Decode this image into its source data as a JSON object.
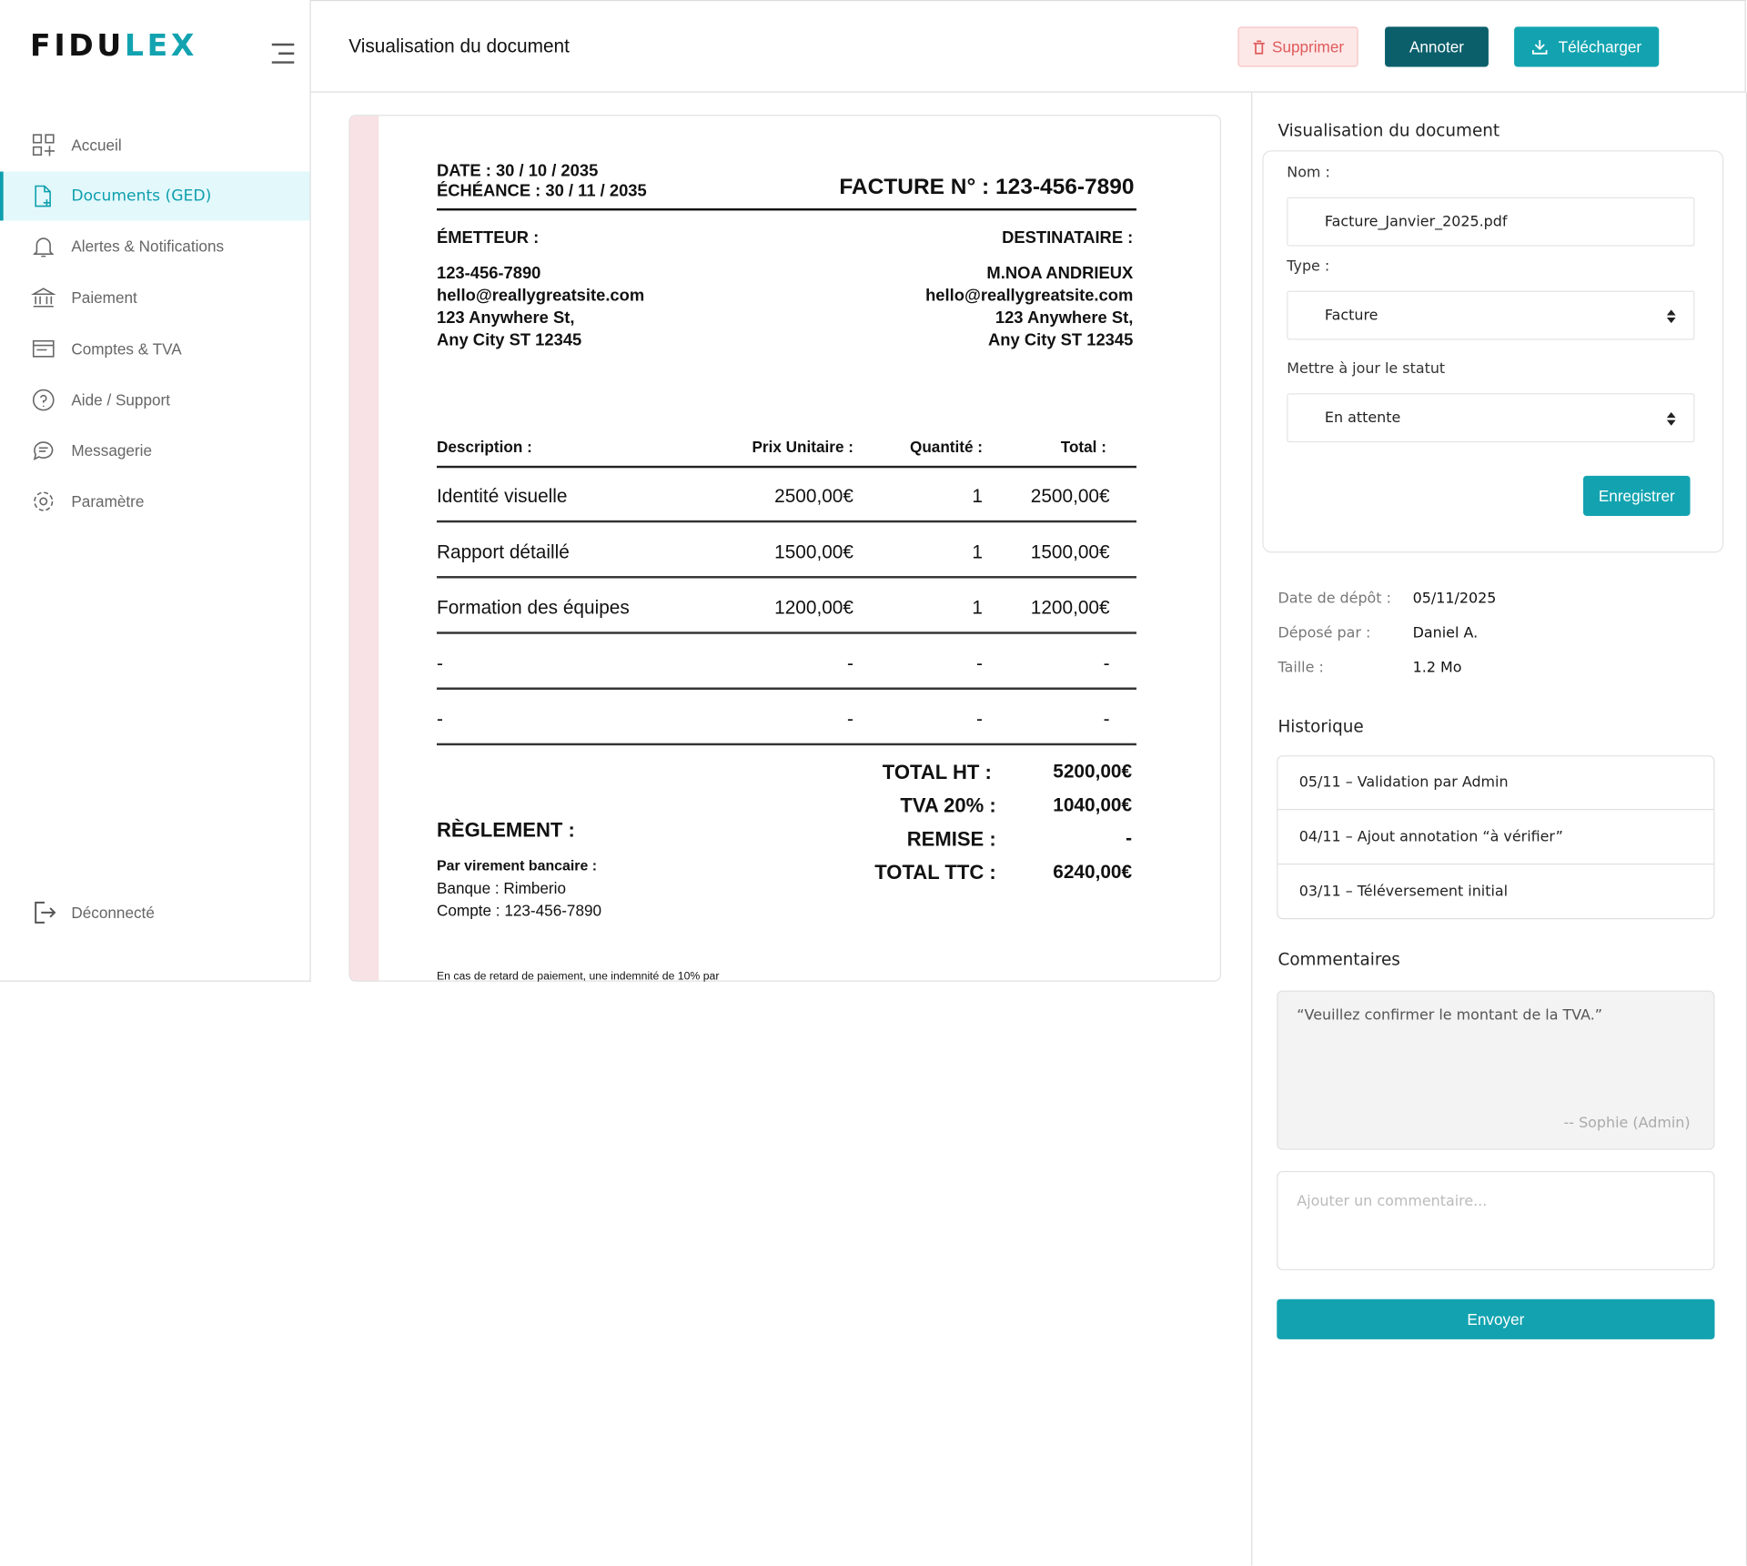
{
  "sidebar": {
    "logo": {
      "dark": "FIDU",
      "accent": "LEX"
    },
    "nav": [
      "Accueil",
      "Documents (GED)",
      "Alertes & Notifications",
      "Paiement",
      "Comptes & TVA",
      "Aide / Support",
      "Messagerie",
      "Paramètre"
    ],
    "active": 1,
    "logout": "Déconnecté"
  },
  "header": {
    "title": "Visualisation du document",
    "buttons": {
      "delete": "Supprimer",
      "annotate": "Annoter",
      "download": "Télécharger"
    }
  },
  "invoice": {
    "date": "DATE : 30 / 10 / 2035",
    "due": "ÉCHÉANCE : 30 / 11 / 2035",
    "number": "FACTURE N° : 123-456-7890",
    "issuer": {
      "label": "ÉMETTEUR :",
      "lines": [
        "123-456-7890",
        "hello@reallygreatsite.com",
        "123 Anywhere St,",
        "Any City ST 12345"
      ]
    },
    "recipient": {
      "label": "DESTINATAIRE :",
      "lines": [
        "M.NOA ANDRIEUX",
        "hello@reallygreatsite.com",
        "123 Anywhere St,",
        "Any City ST 12345"
      ]
    },
    "table": {
      "header": [
        "Description :",
        "Prix Unitaire :",
        "Quantité :",
        "Total :"
      ],
      "rows": [
        [
          "Identité visuelle",
          "2500,00€",
          "1",
          "2500,00€"
        ],
        [
          "Rapport détaillé",
          "1500,00€",
          "1",
          "1500,00€"
        ],
        [
          "Formation des équipes",
          "1200,00€",
          "1",
          "1200,00€"
        ],
        [
          "-",
          "-",
          "-",
          "-"
        ],
        [
          "-",
          "-",
          "-",
          "-"
        ]
      ]
    },
    "totals": [
      [
        "TOTAL HT :",
        "5200,00€"
      ],
      [
        "TVA 20% :",
        "1040,00€"
      ],
      [
        "REMISE :",
        "-"
      ],
      [
        "TOTAL TTC :",
        "6240,00€"
      ]
    ],
    "payment": {
      "title": "RÈGLEMENT  :",
      "method": "Par virement bancaire :",
      "lines": [
        "Banque : Rimberio",
        "Compte : 123-456-7890"
      ]
    },
    "note": "En cas de retard de paiement, une indemnité de 10% par"
  },
  "panel": {
    "title": "Visualisation du document",
    "name_label": "Nom :",
    "name_value": "Facture_Janvier_2025.pdf",
    "type_label": "Type :",
    "type_value": "Facture",
    "status_label": "Mettre à jour le statut",
    "status_value": "En attente",
    "save": "Enregistrer",
    "meta": [
      [
        "Date de dépôt :",
        "05/11/2025"
      ],
      [
        "Déposé par :",
        "Daniel A."
      ],
      [
        "Taille :",
        "1.2 Mo"
      ]
    ],
    "history_title": "Historique",
    "history": [
      "05/11 – Validation par Admin",
      "04/11 – Ajout annotation “à vérifier”",
      "03/11 – Téléversement initial"
    ],
    "comments_title": "Commentaires",
    "comment": {
      "text": "“Veuillez confirmer le montant de la TVA.”",
      "author": "-- Sophie (Admin)"
    },
    "placeholder": "Ajouter un commentaire...",
    "send": "Envoyer"
  }
}
